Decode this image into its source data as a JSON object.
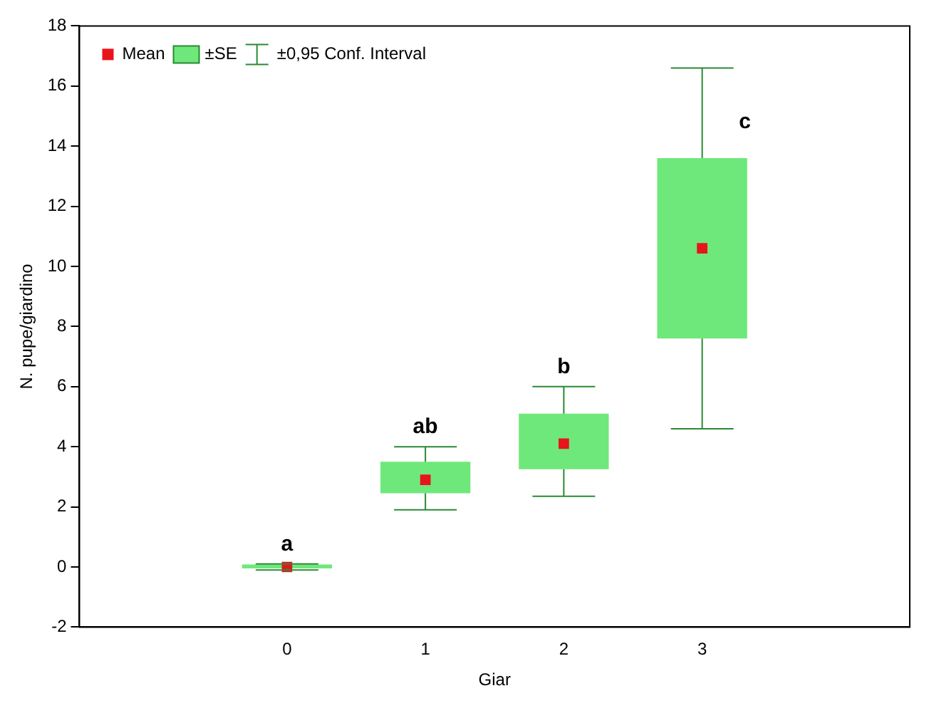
{
  "chart_data": {
    "type": "box",
    "xlabel": "Giar",
    "ylabel": "N. pupe/giardino",
    "categories": [
      null,
      "0",
      "1",
      "2",
      "3",
      null
    ],
    "series": [
      {
        "name": "±SE",
        "type": "box",
        "color": "#6ee87a",
        "boxes": [
          null,
          {
            "low": -0.1,
            "q1": -0.05,
            "q3": 0.08,
            "high": 0.1
          },
          {
            "low": 1.9,
            "q1": 2.45,
            "q3": 3.5,
            "high": 4.0
          },
          {
            "low": 2.35,
            "q1": 3.25,
            "q3": 5.1,
            "high": 6.0
          },
          {
            "low": 4.6,
            "q1": 7.6,
            "q3": 13.6,
            "high": 16.6
          },
          null
        ]
      },
      {
        "name": "Mean",
        "type": "scatter",
        "color": "#e8141c",
        "marker": "square",
        "x": [
          "0",
          "1",
          "2",
          "3"
        ],
        "values": [
          0,
          2.9,
          4.1,
          10.6
        ]
      }
    ],
    "ylim": [
      -2,
      18
    ],
    "yticks": [
      -2,
      0,
      2,
      4,
      6,
      8,
      10,
      12,
      14,
      16,
      18
    ],
    "grid": false,
    "legend": "top left",
    "annotations": [
      "±0,95 Conf. Interval",
      {
        "text": "a",
        "x": "0",
        "y": 0.1
      },
      {
        "text": "ab",
        "x": "1",
        "y": 4.0
      },
      {
        "text": "b",
        "x": "2",
        "y": 6.0
      },
      {
        "text": "c",
        "x": "3",
        "y": 14.8
      }
    ]
  }
}
